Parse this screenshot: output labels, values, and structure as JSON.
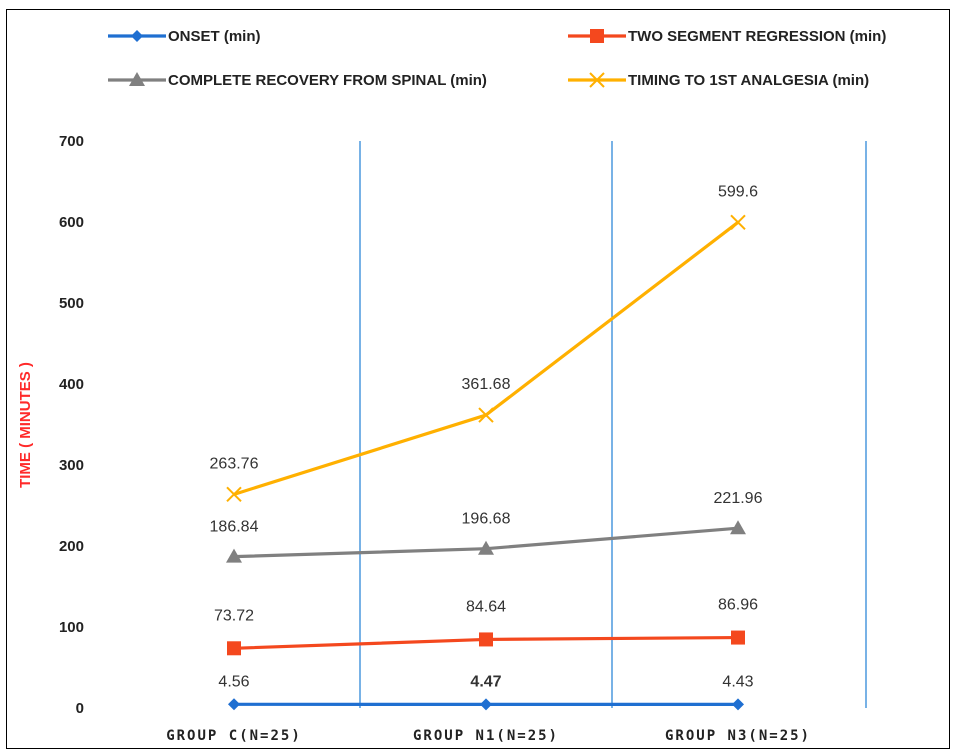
{
  "chart_data": {
    "type": "line",
    "categories": [
      "GROUP C(N=25)",
      "GROUP N1(N=25)",
      "GROUP N3(N=25)"
    ],
    "ylabel": "TIME ( MINUTES )",
    "ylabel_color": "#ff2a2a",
    "ylim": [
      0,
      700
    ],
    "yticks": [
      "0",
      "100",
      "200",
      "300",
      "400",
      "500",
      "600",
      "700"
    ],
    "grid": "vertical lines between categories",
    "legend_position": "top",
    "series": [
      {
        "name": "ONSET (min)",
        "values": [
          4.56,
          4.47,
          4.43
        ],
        "labels": [
          "4.56",
          "4.47",
          "4.43"
        ],
        "color": "#1f6fd1",
        "marker": "diamond"
      },
      {
        "name": "TWO SEGMENT REGRESSION (min)",
        "values": [
          73.72,
          84.64,
          86.96
        ],
        "labels": [
          "73.72",
          "84.64",
          "86.96"
        ],
        "color": "#f4481e",
        "marker": "square"
      },
      {
        "name": "COMPLETE RECOVERY FROM SPINAL (min)",
        "values": [
          186.84,
          196.68,
          221.96
        ],
        "labels": [
          "186.84",
          "196.68",
          "221.96"
        ],
        "color": "#808080",
        "marker": "triangle"
      },
      {
        "name": "TIMING TO 1ST ANALGESIA (min)",
        "values": [
          263.76,
          361.68,
          599.6
        ],
        "labels": [
          "263.76",
          "361.68",
          "599.6"
        ],
        "color": "#ffb000",
        "marker": "x"
      }
    ]
  }
}
